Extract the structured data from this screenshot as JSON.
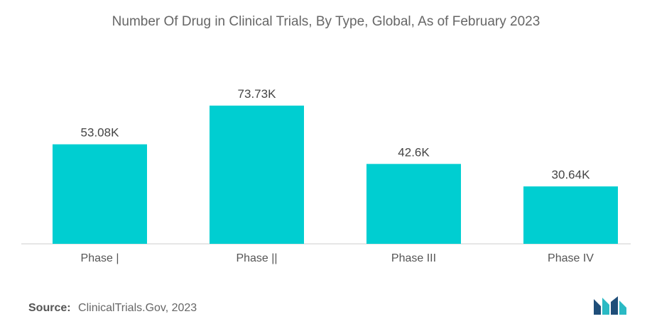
{
  "chart_data": {
    "type": "bar",
    "title": "Number Of Drug in Clinical Trials, By Type, Global, As of February 2023",
    "categories": [
      "Phase |",
      "Phase ||",
      "Phase III",
      "Phase IV"
    ],
    "values": [
      53.08,
      73.73,
      42.6,
      30.64
    ],
    "value_labels": [
      "53.08K",
      "73.73K",
      "42.6K",
      "30.64K"
    ],
    "ylim": [
      0,
      80
    ],
    "grid": false,
    "legend": "none",
    "bar_color": "#00CED1"
  },
  "source": {
    "label": "Source:",
    "text": "ClinicalTrials.Gov, 2023"
  },
  "logo": {
    "icon": "mordor-intelligence-logo-icon",
    "colors": [
      "#1F4E79",
      "#2ABAC4"
    ]
  }
}
